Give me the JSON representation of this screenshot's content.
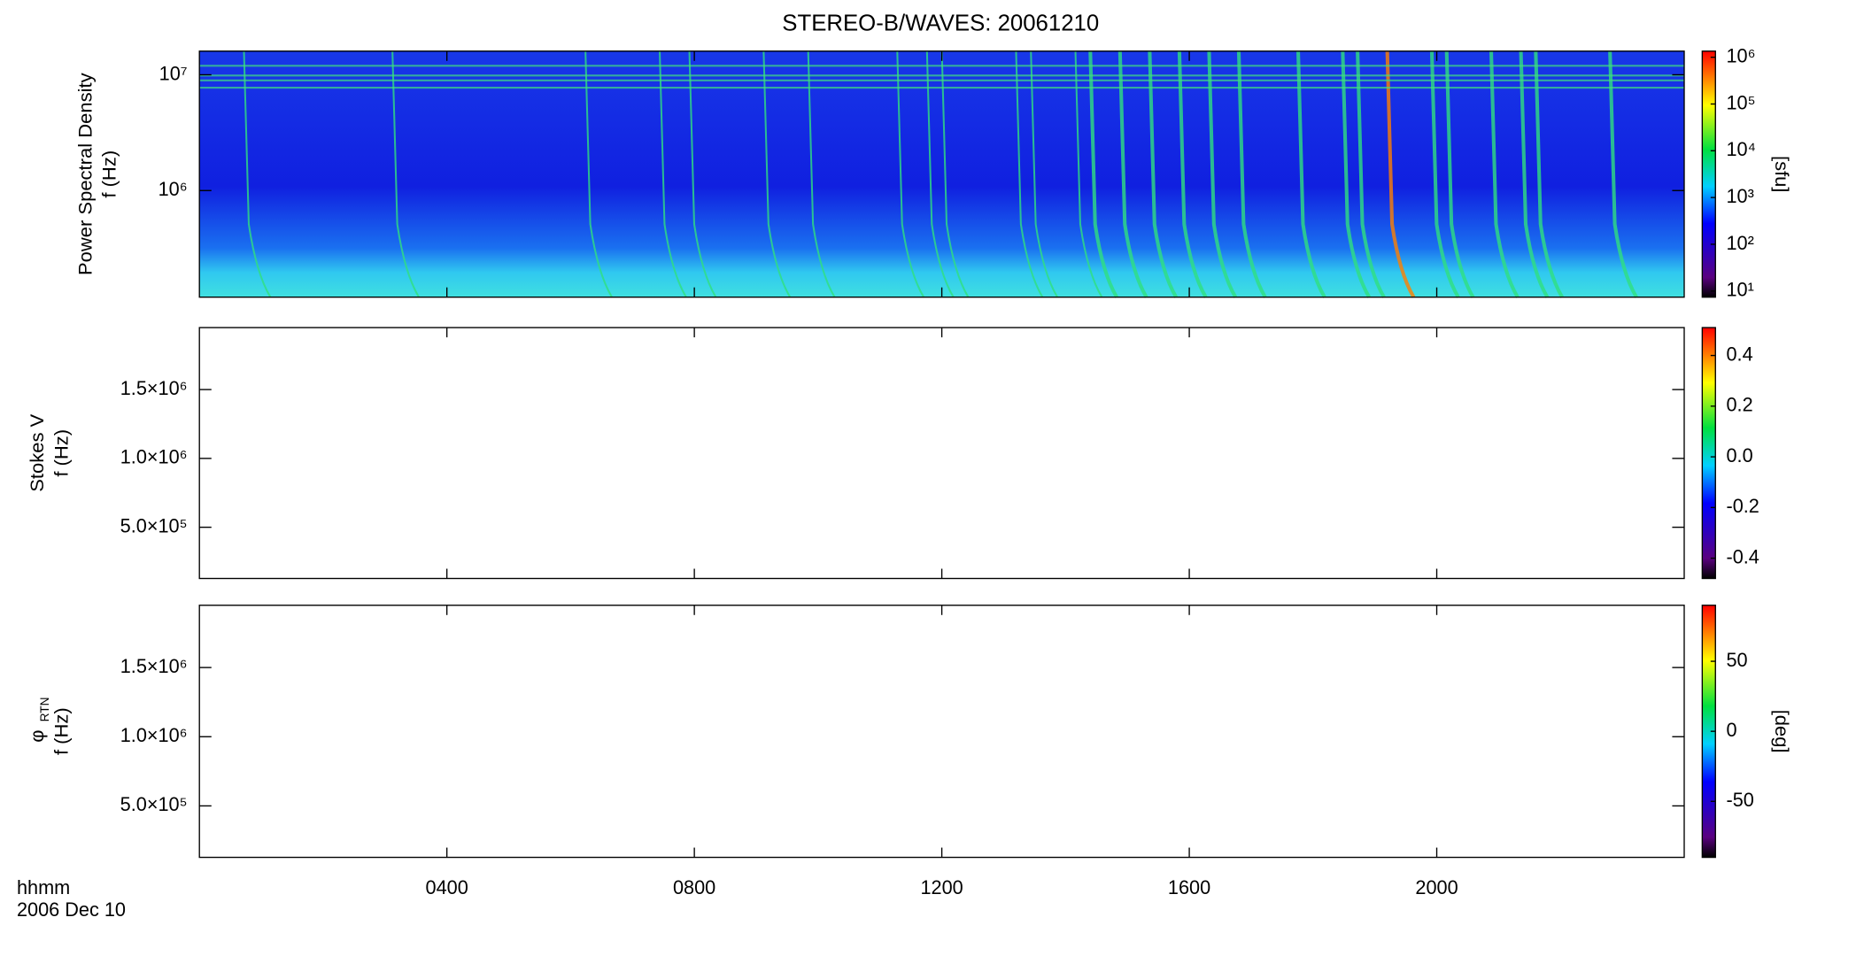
{
  "chart_data": [
    {
      "type": "spectrogram",
      "title": "STEREO-B/WAVES: 20061210",
      "ylabel": [
        "Power Spectral Density",
        "f (Hz)"
      ],
      "ylog": true,
      "ylim": [
        120000,
        16000000
      ],
      "yticks": [
        {
          "value": 1000000,
          "label": "10⁶"
        },
        {
          "value": 10000000,
          "label": "10⁷"
        }
      ],
      "colorbar": {
        "label": "[sfu]",
        "log": true,
        "lim": [
          7.4,
          1350000
        ],
        "ticks": [
          {
            "value": 10,
            "label": "10¹"
          },
          {
            "value": 100,
            "label": "10²"
          },
          {
            "value": 1000,
            "label": "10³"
          },
          {
            "value": 10000,
            "label": "10⁴"
          },
          {
            "value": 100000,
            "label": "10⁵"
          },
          {
            "value": 1000000,
            "label": "10⁶"
          }
        ]
      }
    },
    {
      "type": "spectrogram",
      "ylabel": [
        "Stokes V",
        "f (Hz)"
      ],
      "ylog": false,
      "ylim": [
        128000,
        1950000
      ],
      "yticks": [
        {
          "value": 500000,
          "label": "5.0×10⁵"
        },
        {
          "value": 1000000,
          "label": "1.0×10⁶"
        },
        {
          "value": 1500000,
          "label": "1.5×10⁶"
        }
      ],
      "colorbar": {
        "log": false,
        "lim": [
          -0.48,
          0.51
        ],
        "ticks": [
          -0.4,
          -0.2,
          {
            "value": 0,
            "label": "0.0"
          },
          0.2,
          0.4
        ]
      }
    },
    {
      "type": "spectrogram",
      "ylabel_symbol": "φ",
      "ylabel_subscript": "RTN",
      "ylabel": [
        "f (Hz)"
      ],
      "ylog": false,
      "ylim": [
        128000,
        1950000
      ],
      "yticks": [
        {
          "value": 500000,
          "label": "5.0×10⁵"
        },
        {
          "value": 1000000,
          "label": "1.0×10⁶"
        },
        {
          "value": 1500000,
          "label": "1.5×10⁶"
        }
      ],
      "colorbar": {
        "label": "[deg]",
        "log": false,
        "lim": [
          -90,
          90
        ],
        "ticks": [
          -50,
          0,
          50
        ]
      },
      "xlim": [
        0,
        24
      ],
      "xticks": [
        {
          "value": 4,
          "label": "0400"
        },
        {
          "value": 8,
          "label": "0800"
        },
        {
          "value": 12,
          "label": "1200"
        },
        {
          "value": 16,
          "label": "1600"
        },
        {
          "value": 20,
          "label": "2000"
        }
      ],
      "xlabel": [
        "hhmm",
        "2006 Dec 10"
      ]
    }
  ]
}
